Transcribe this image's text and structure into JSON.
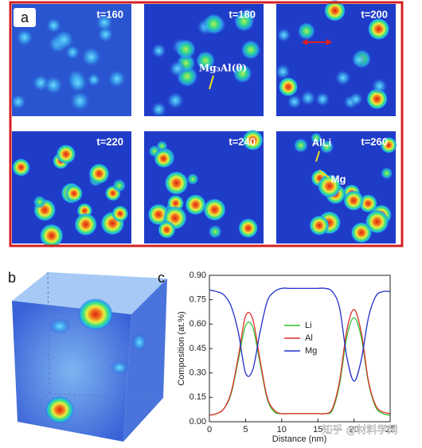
{
  "panel_a": {
    "label": "a",
    "frames": [
      "t=160",
      "t=180",
      "t=200",
      "t=220",
      "t=240",
      "t=260"
    ],
    "annotations": [
      "Mg₃Al(θ)",
      "AlLi",
      "Mg"
    ]
  },
  "panel_b": {
    "label": "b"
  },
  "watermark": "知乎 @材料学网",
  "chart_data": {
    "type": "line",
    "label": "c",
    "xlabel": "Distance (nm)",
    "ylabel": "Composition (at.%)",
    "x": [
      0,
      1,
      2,
      3,
      4,
      5,
      6,
      7,
      8,
      9,
      10,
      11,
      12,
      13,
      14,
      15,
      16,
      17,
      18,
      19,
      20,
      21,
      22,
      23,
      24,
      25
    ],
    "series": [
      {
        "name": "Li",
        "color": "#2ec12e",
        "values": [
          0.04,
          0.05,
          0.08,
          0.17,
          0.38,
          0.59,
          0.58,
          0.36,
          0.14,
          0.06,
          0.05,
          0.05,
          0.05,
          0.05,
          0.05,
          0.05,
          0.05,
          0.07,
          0.23,
          0.52,
          0.64,
          0.52,
          0.24,
          0.09,
          0.05,
          0.04
        ]
      },
      {
        "name": "Al",
        "color": "#e0302a",
        "values": [
          0.04,
          0.05,
          0.08,
          0.18,
          0.4,
          0.65,
          0.63,
          0.38,
          0.15,
          0.07,
          0.05,
          0.05,
          0.05,
          0.05,
          0.05,
          0.05,
          0.05,
          0.08,
          0.25,
          0.56,
          0.69,
          0.55,
          0.25,
          0.1,
          0.06,
          0.05
        ]
      },
      {
        "name": "Mg",
        "color": "#2030c8",
        "values": [
          0.81,
          0.8,
          0.78,
          0.71,
          0.55,
          0.3,
          0.32,
          0.55,
          0.74,
          0.8,
          0.82,
          0.82,
          0.82,
          0.82,
          0.82,
          0.82,
          0.82,
          0.8,
          0.7,
          0.4,
          0.25,
          0.38,
          0.64,
          0.77,
          0.8,
          0.8
        ]
      }
    ],
    "xlim": [
      0,
      25
    ],
    "xticks": [
      0,
      5,
      10,
      15,
      20,
      25
    ],
    "ylim": [
      0,
      0.9
    ],
    "yticks": [
      {
        "value": 0,
        "label": "0.00"
      },
      {
        "value": 0.15,
        "label": "0.15"
      },
      {
        "value": 0.3,
        "label": "0.30"
      },
      {
        "value": 0.45,
        "label": "0.45"
      },
      {
        "value": 0.6,
        "label": "0.60"
      },
      {
        "value": 0.75,
        "label": "0.75"
      },
      {
        "value": 0.9,
        "label": "0.90"
      }
    ],
    "grid": false
  }
}
